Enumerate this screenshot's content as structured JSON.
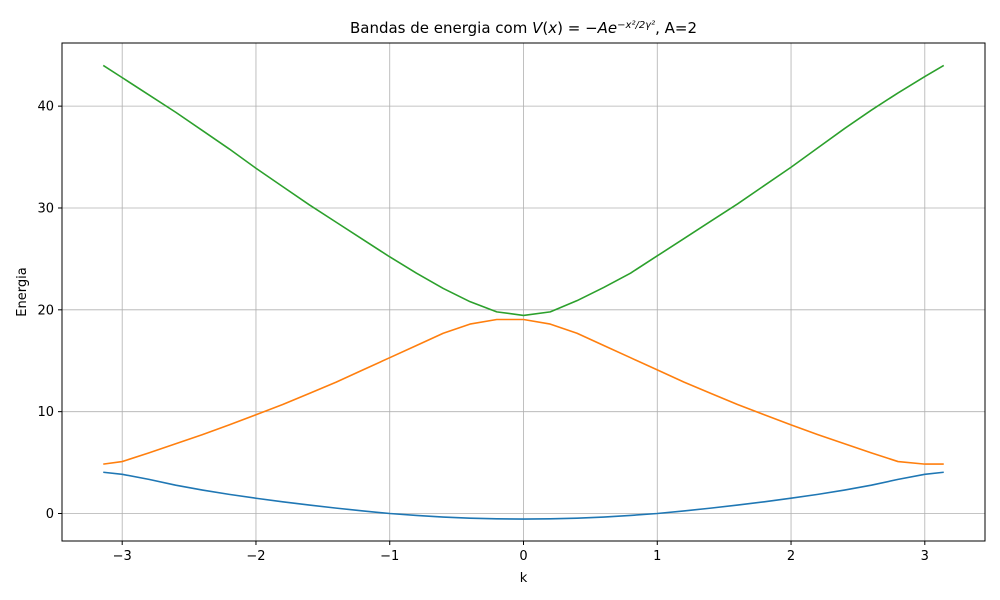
{
  "chart_data": {
    "type": "line",
    "title_prefix": "Bandas de energia com ",
    "title_suffix": ", A=2",
    "xlabel": "k",
    "ylabel": "Energia",
    "xlim": [
      -3.45,
      3.45
    ],
    "ylim": [
      -2.7,
      46.2
    ],
    "xticks": [
      -3,
      -2,
      -1,
      0,
      1,
      2,
      3
    ],
    "xtick_labels": [
      "−3",
      "−2",
      "−1",
      "0",
      "1",
      "2",
      "3"
    ],
    "yticks": [
      0,
      10,
      20,
      30,
      40
    ],
    "ytick_labels": [
      "0",
      "10",
      "20",
      "30",
      "40"
    ],
    "grid": true,
    "series": [
      {
        "color": "#1f77b4",
        "x": [
          -3.1416,
          -3.0,
          -2.8,
          -2.6,
          -2.4,
          -2.2,
          -2.0,
          -1.8,
          -1.6,
          -1.4,
          -1.2,
          -1.0,
          -0.8,
          -0.6,
          -0.4,
          -0.2,
          0.0,
          0.2,
          0.4,
          0.6,
          0.8,
          1.0,
          1.2,
          1.4,
          1.6,
          1.8,
          2.0,
          2.2,
          2.4,
          2.6,
          2.8,
          3.0,
          3.1416
        ],
        "y": [
          4.05,
          3.85,
          3.35,
          2.78,
          2.3,
          1.88,
          1.5,
          1.15,
          0.83,
          0.53,
          0.25,
          0.0,
          -0.19,
          -0.35,
          -0.46,
          -0.52,
          -0.55,
          -0.52,
          -0.46,
          -0.35,
          -0.19,
          0.0,
          0.25,
          0.53,
          0.83,
          1.15,
          1.5,
          1.88,
          2.3,
          2.78,
          3.35,
          3.85,
          4.05
        ]
      },
      {
        "color": "#ff7f0e",
        "x": [
          -3.1416,
          -3.0,
          -2.8,
          -2.6,
          -2.4,
          -2.2,
          -2.0,
          -1.8,
          -1.6,
          -1.4,
          -1.2,
          -1.0,
          -0.8,
          -0.6,
          -0.4,
          -0.2,
          0.0,
          0.2,
          0.4,
          0.6,
          0.8,
          1.0,
          1.2,
          1.4,
          1.6,
          1.8,
          2.0,
          2.2,
          2.4,
          2.6,
          2.8,
          3.0,
          3.1416
        ],
        "y": [
          4.85,
          5.1,
          5.95,
          6.85,
          7.75,
          8.7,
          9.7,
          10.7,
          11.8,
          12.9,
          14.1,
          15.3,
          16.5,
          17.7,
          18.6,
          19.05,
          19.05,
          18.6,
          17.7,
          16.5,
          15.3,
          14.1,
          12.9,
          11.8,
          10.7,
          9.7,
          8.7,
          7.75,
          6.85,
          5.95,
          5.1,
          4.85,
          4.85
        ]
      },
      {
        "color": "#2ca02c",
        "x": [
          -3.1416,
          -3.0,
          -2.8,
          -2.6,
          -2.4,
          -2.2,
          -2.0,
          -1.8,
          -1.6,
          -1.4,
          -1.2,
          -1.0,
          -0.8,
          -0.6,
          -0.4,
          -0.2,
          0.0,
          0.2,
          0.4,
          0.6,
          0.8,
          1.0,
          1.2,
          1.4,
          1.6,
          1.8,
          2.0,
          2.2,
          2.4,
          2.6,
          2.8,
          3.0,
          3.1416
        ],
        "y": [
          44.0,
          42.8,
          41.1,
          39.4,
          37.6,
          35.8,
          33.9,
          32.1,
          30.3,
          28.6,
          26.9,
          25.2,
          23.6,
          22.1,
          20.8,
          19.8,
          19.45,
          19.8,
          20.9,
          22.2,
          23.6,
          25.3,
          27.0,
          28.7,
          30.4,
          32.2,
          34.0,
          35.9,
          37.8,
          39.6,
          41.3,
          42.9,
          44.0
        ]
      }
    ]
  }
}
